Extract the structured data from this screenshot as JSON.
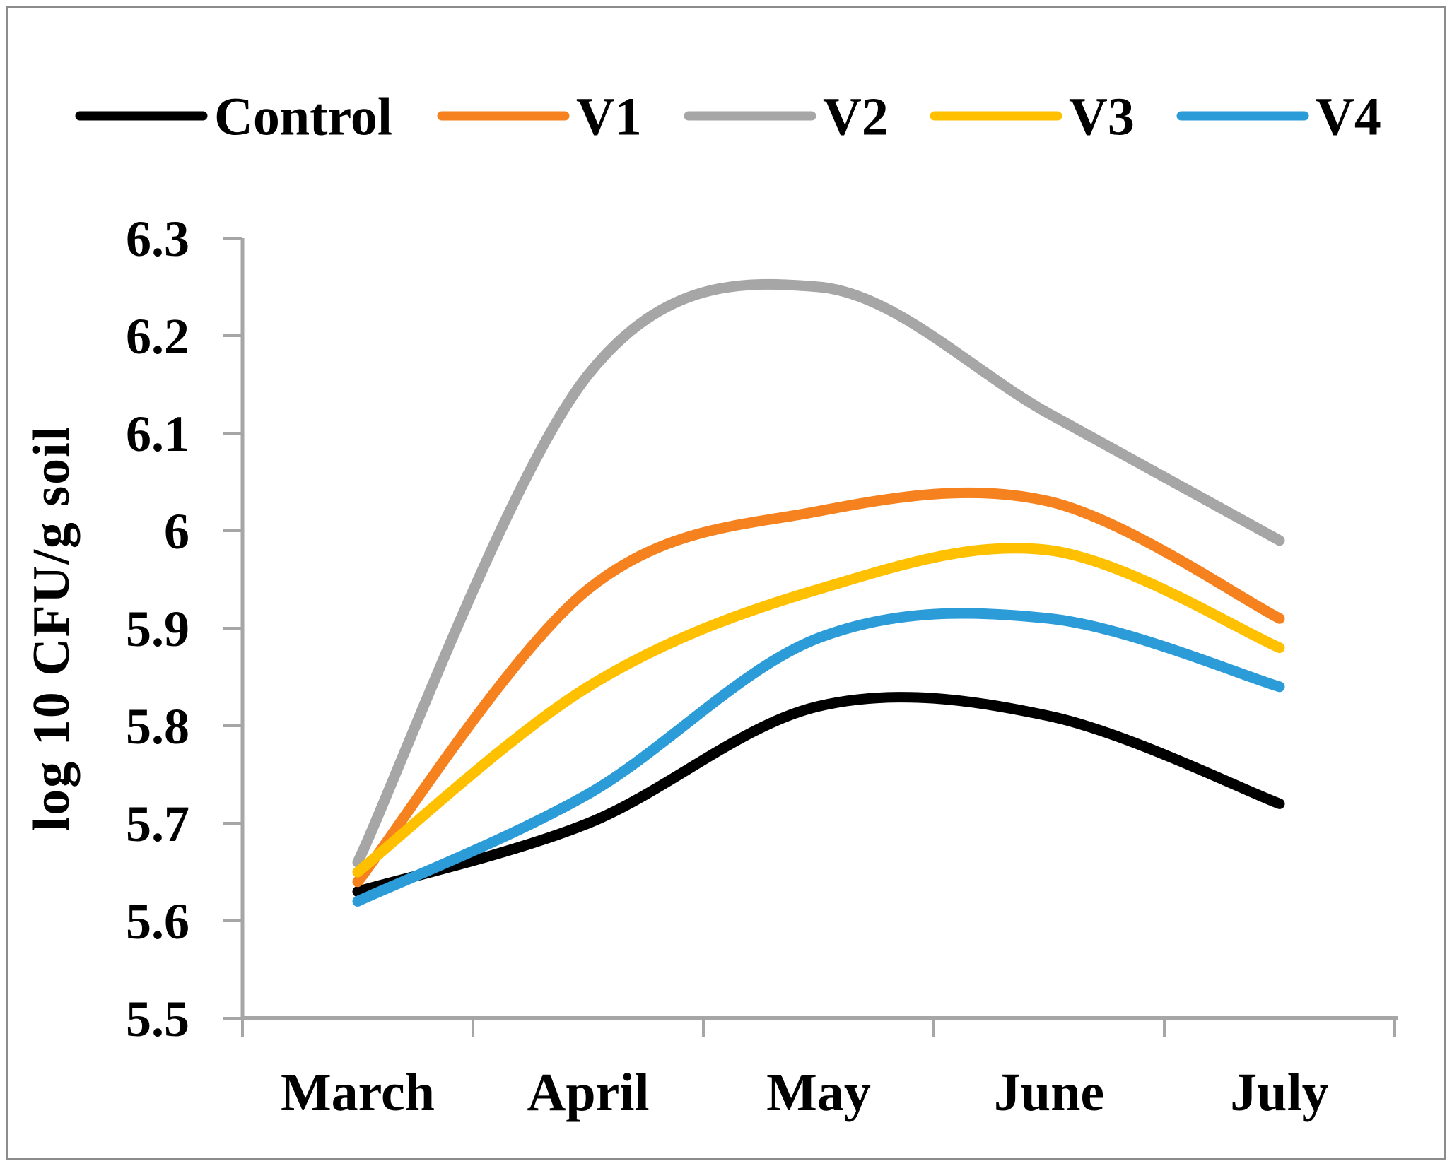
{
  "figure": {
    "background": "#FFFFFF",
    "border_color": "#8C8C8C"
  },
  "chart_data": {
    "type": "line",
    "title": "",
    "xlabel": "",
    "ylabel": "log 10 CFU/g soil",
    "categories": [
      "March",
      "April",
      "May",
      "June",
      "July"
    ],
    "series": [
      {
        "name": "Control",
        "color": "#000000",
        "values": [
          5.63,
          5.7,
          5.82,
          5.81,
          5.72
        ]
      },
      {
        "name": "V1",
        "color": "#F6821F",
        "values": [
          5.64,
          5.94,
          6.02,
          6.03,
          5.91
        ]
      },
      {
        "name": "V2",
        "color": "#A6A6A6",
        "values": [
          5.66,
          6.16,
          6.25,
          6.12,
          5.99
        ]
      },
      {
        "name": "V3",
        "color": "#FFC000",
        "values": [
          5.65,
          5.84,
          5.94,
          5.98,
          5.88
        ]
      },
      {
        "name": "V4",
        "color": "#2B9CD8",
        "values": [
          5.62,
          5.73,
          5.89,
          5.91,
          5.84
        ]
      }
    ],
    "ylim": [
      5.5,
      6.3
    ],
    "ytick_step": 0.1,
    "ytick_labels": [
      "5.5",
      "5.6",
      "5.7",
      "5.8",
      "5.9",
      "6",
      "6.1",
      "6.2",
      "6.3"
    ],
    "legend": {
      "position": "top",
      "entries": [
        "Control",
        "V1",
        "V2",
        "V3",
        "V4"
      ]
    },
    "grid": false,
    "smoothed_lines": true,
    "axis_color": "#A6A6A6",
    "text_color": "#000000"
  }
}
